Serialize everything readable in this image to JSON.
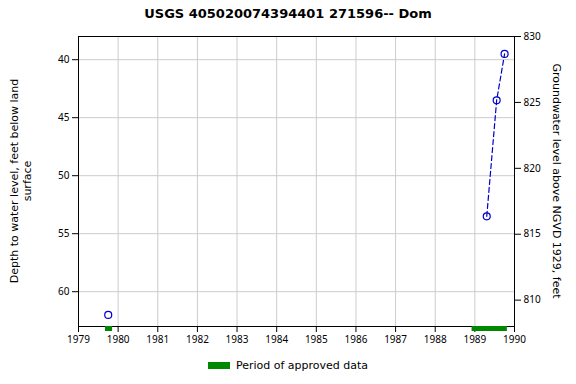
{
  "chart_data": {
    "type": "line",
    "title": "USGS 405020074394401 271596-- Dom",
    "ylabel": "Depth to water level, feet below land\n surface",
    "y2label": "Groundwater level above NGVD 1929, feet",
    "xlim": [
      1979,
      1990
    ],
    "xticks": [
      1979,
      1980,
      1981,
      1982,
      1983,
      1984,
      1985,
      1986,
      1987,
      1988,
      1989,
      1990
    ],
    "ylim": [
      63,
      38
    ],
    "yticks": [
      40,
      45,
      50,
      55,
      60
    ],
    "y2lim": [
      808,
      830
    ],
    "y2ticks": [
      810,
      815,
      820,
      825,
      830
    ],
    "grid": true,
    "series": [
      {
        "x": [
          1979.75
        ],
        "values": [
          62.0
        ],
        "color": "#0000cc",
        "marker": "circle",
        "line_style": "none"
      },
      {
        "x": [
          1989.3,
          1989.55,
          1989.75
        ],
        "values": [
          53.5,
          43.5,
          39.5
        ],
        "color": "#0000cc",
        "marker": "circle",
        "line_style": "dashed"
      }
    ],
    "approved_periods": {
      "name": "Period of approved data",
      "color": "#008800",
      "periods": [
        [
          1979.68,
          1979.86
        ],
        [
          1988.93,
          1989.82
        ]
      ]
    },
    "legend": "lower center"
  }
}
